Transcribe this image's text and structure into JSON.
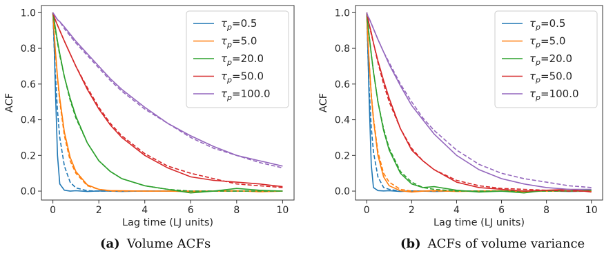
{
  "panels": [
    {
      "caption_tag": "(a)",
      "caption_text": "Volume ACFs",
      "chart_data": {
        "type": "line",
        "xlabel": "Lag time (LJ units)",
        "ylabel": "ACF",
        "xlim": [
          -0.5,
          10.5
        ],
        "ylim": [
          -0.05,
          1.04
        ],
        "xticks": [
          0,
          2,
          4,
          6,
          8,
          10
        ],
        "yticks": [
          0.0,
          0.2,
          0.4,
          0.6,
          0.8,
          1.0
        ],
        "grid": false,
        "legend_position": "top-right",
        "x": [
          0,
          0.05,
          0.1,
          0.2,
          0.3,
          0.5,
          0.75,
          1,
          1.5,
          2,
          2.5,
          3,
          4,
          5,
          6,
          7,
          8,
          9,
          10
        ],
        "series": [
          {
            "name": "τp=0.5",
            "tau": 0.5,
            "color": "#1f77b4",
            "values": [
              1.0,
              0.85,
              0.6,
              0.2,
              0.04,
              0.005,
              0.0,
              0.002,
              -0.002,
              0.001,
              0.0,
              -0.002,
              0.001,
              0.0,
              -0.001,
              0.0,
              0.001,
              -0.002,
              0.0
            ],
            "fit": [
              1.0,
              0.82,
              0.67,
              0.45,
              0.3,
              0.14,
              0.05,
              0.018,
              0.002,
              0.0,
              0.0,
              0.0,
              0.0,
              0.0,
              0.0,
              0.0,
              0.0,
              0.0,
              0.0
            ]
          },
          {
            "name": "τp=5.0",
            "tau": 5.0,
            "color": "#ff7f0e",
            "values": [
              1.0,
              0.9,
              0.8,
              0.64,
              0.52,
              0.33,
              0.19,
              0.11,
              0.035,
              0.01,
              0.003,
              0.002,
              0.0,
              0.0,
              -0.003,
              0.0,
              0.002,
              -0.004,
              0.0
            ],
            "fit": [
              1.0,
              0.89,
              0.79,
              0.63,
              0.5,
              0.31,
              0.17,
              0.1,
              0.03,
              0.01,
              0.0,
              0.0,
              0.0,
              0.0,
              0.0,
              0.0,
              0.0,
              0.0,
              0.0
            ]
          },
          {
            "name": "τp=20.0",
            "tau": 20.0,
            "color": "#2ca02c",
            "values": [
              1.0,
              0.96,
              0.92,
              0.84,
              0.77,
              0.64,
              0.52,
              0.42,
              0.27,
              0.17,
              0.11,
              0.07,
              0.03,
              0.01,
              -0.01,
              0.0,
              0.015,
              0.005,
              0.0
            ],
            "fit": [
              1.0,
              0.955,
              0.91,
              0.83,
              0.76,
              0.64,
              0.51,
              0.41,
              0.27,
              0.17,
              0.11,
              0.07,
              0.03,
              0.01,
              0.0,
              0.0,
              0.0,
              0.0,
              0.0
            ]
          },
          {
            "name": "τp=50.0",
            "tau": 50.0,
            "color": "#d62728",
            "values": [
              1.0,
              0.98,
              0.96,
              0.93,
              0.9,
              0.84,
              0.77,
              0.7,
              0.57,
              0.46,
              0.37,
              0.3,
              0.2,
              0.13,
              0.08,
              0.06,
              0.05,
              0.04,
              0.025
            ],
            "fit": [
              1.0,
              0.98,
              0.96,
              0.93,
              0.9,
              0.84,
              0.77,
              0.7,
              0.58,
              0.47,
              0.38,
              0.31,
              0.21,
              0.14,
              0.1,
              0.07,
              0.04,
              0.03,
              0.02
            ]
          },
          {
            "name": "τp=100.0",
            "tau": 100.0,
            "color": "#9467bd",
            "values": [
              1.0,
              0.99,
              0.98,
              0.96,
              0.95,
              0.92,
              0.88,
              0.84,
              0.77,
              0.7,
              0.63,
              0.57,
              0.47,
              0.38,
              0.31,
              0.25,
              0.2,
              0.17,
              0.14
            ],
            "fit": [
              1.0,
              0.99,
              0.98,
              0.96,
              0.95,
              0.91,
              0.87,
              0.83,
              0.76,
              0.69,
              0.62,
              0.56,
              0.46,
              0.38,
              0.3,
              0.24,
              0.2,
              0.16,
              0.13
            ]
          }
        ]
      }
    },
    {
      "caption_tag": "(b)",
      "caption_text": "ACFs of volume variance",
      "chart_data": {
        "type": "line",
        "xlabel": "Lag time (LJ units)",
        "ylabel": "ACF",
        "xlim": [
          -0.5,
          10.5
        ],
        "ylim": [
          -0.05,
          1.04
        ],
        "xticks": [
          0,
          2,
          4,
          6,
          8,
          10
        ],
        "yticks": [
          0.0,
          0.2,
          0.4,
          0.6,
          0.8,
          1.0
        ],
        "grid": false,
        "legend_position": "top-right",
        "x": [
          0,
          0.05,
          0.1,
          0.2,
          0.3,
          0.5,
          0.75,
          1,
          1.5,
          2,
          2.5,
          3,
          4,
          5,
          6,
          7,
          8,
          9,
          10
        ],
        "series": [
          {
            "name": "τp=0.5",
            "tau": 0.5,
            "color": "#1f77b4",
            "values": [
              1.0,
              0.8,
              0.55,
              0.15,
              0.02,
              0.003,
              0.001,
              0.002,
              -0.002,
              0.001,
              0.0,
              -0.002,
              0.001,
              0.0,
              -0.001,
              0.0,
              0.001,
              -0.002,
              0.0
            ],
            "fit": [
              1.0,
              0.78,
              0.6,
              0.36,
              0.22,
              0.08,
              0.02,
              0.01,
              0.0,
              0.0,
              0.0,
              0.0,
              0.0,
              0.0,
              0.0,
              0.0,
              0.0,
              0.0,
              0.0
            ]
          },
          {
            "name": "τp=5.0",
            "tau": 5.0,
            "color": "#ff7f0e",
            "values": [
              1.0,
              0.86,
              0.74,
              0.54,
              0.4,
              0.2,
              0.08,
              0.03,
              0.002,
              -0.005,
              0.0,
              0.003,
              -0.002,
              0.0,
              0.002,
              -0.003,
              0.0,
              0.002,
              0.0
            ],
            "fit": [
              1.0,
              0.86,
              0.74,
              0.55,
              0.41,
              0.22,
              0.1,
              0.05,
              0.01,
              0.0,
              0.0,
              0.0,
              0.0,
              0.0,
              0.0,
              0.0,
              0.0,
              0.0,
              0.0
            ]
          },
          {
            "name": "τp=20.0",
            "tau": 20.0,
            "color": "#2ca02c",
            "values": [
              1.0,
              0.94,
              0.88,
              0.77,
              0.67,
              0.5,
              0.34,
              0.23,
              0.1,
              0.04,
              0.02,
              0.025,
              0.005,
              -0.005,
              0.0,
              -0.01,
              0.005,
              0.0,
              0.005
            ],
            "fit": [
              1.0,
              0.94,
              0.88,
              0.77,
              0.67,
              0.5,
              0.35,
              0.24,
              0.11,
              0.05,
              0.02,
              0.01,
              0.0,
              0.0,
              0.0,
              0.0,
              0.0,
              0.0,
              0.0
            ]
          },
          {
            "name": "τp=50.0",
            "tau": 50.0,
            "color": "#d62728",
            "values": [
              1.0,
              0.97,
              0.94,
              0.89,
              0.83,
              0.73,
              0.62,
              0.52,
              0.35,
              0.23,
              0.17,
              0.12,
              0.05,
              0.02,
              0.01,
              0.0,
              0.005,
              0.01,
              -0.005
            ],
            "fit": [
              1.0,
              0.97,
              0.94,
              0.88,
              0.83,
              0.72,
              0.6,
              0.5,
              0.35,
              0.24,
              0.17,
              0.12,
              0.06,
              0.03,
              0.015,
              0.01,
              0.005,
              0.0,
              0.0
            ]
          },
          {
            "name": "τp=100.0",
            "tau": 100.0,
            "color": "#9467bd",
            "values": [
              1.0,
              0.98,
              0.97,
              0.94,
              0.91,
              0.85,
              0.78,
              0.71,
              0.59,
              0.48,
              0.4,
              0.32,
              0.2,
              0.12,
              0.07,
              0.04,
              0.02,
              0.01,
              0.01
            ],
            "fit": [
              1.0,
              0.98,
              0.97,
              0.94,
              0.91,
              0.85,
              0.78,
              0.72,
              0.6,
              0.5,
              0.41,
              0.34,
              0.23,
              0.15,
              0.1,
              0.07,
              0.05,
              0.03,
              0.02
            ]
          }
        ]
      }
    }
  ]
}
